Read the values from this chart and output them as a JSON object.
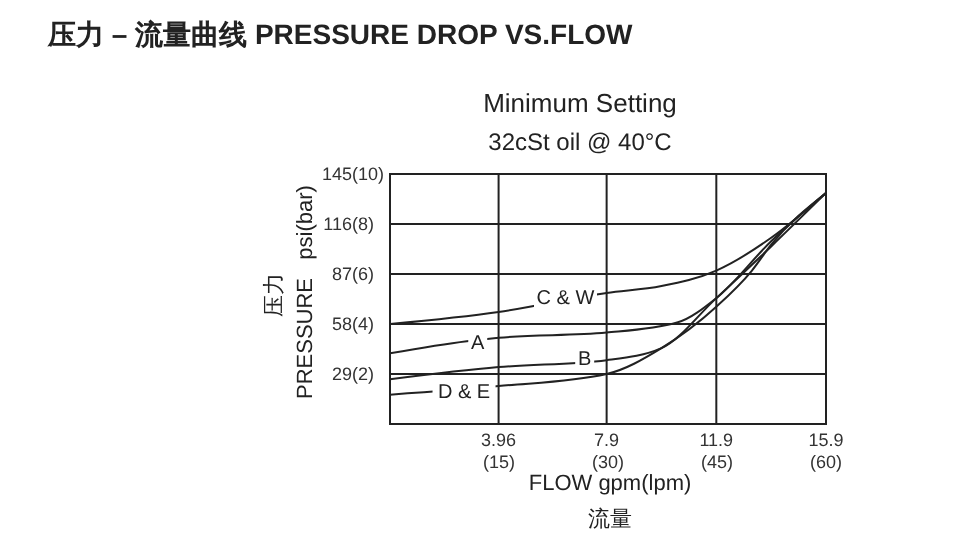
{
  "chart_data": {
    "type": "line",
    "title": "压力 – 流量曲线 PRESSURE DROP VS.FLOW",
    "subtitle": "Minimum Setting\n32cSt oil @ 40°C",
    "xlabel": "FLOW gpm(lpm)\n流量",
    "ylabel": "压力\nPRESSURE   psi(bar)",
    "xlim": [
      0,
      15.9
    ],
    "ylim": [
      0,
      145
    ],
    "xticks": [
      3.96,
      7.9,
      11.9,
      15.9
    ],
    "x2lim": [
      0,
      60
    ],
    "x2ticks": [
      {
        "value": 15,
        "label": "(15)"
      },
      {
        "value": 30,
        "label": "(30)"
      },
      {
        "value": 45,
        "label": "(45)"
      },
      {
        "value": 60,
        "label": "(60)"
      }
    ],
    "yticks": [
      29,
      58,
      87,
      116,
      145
    ],
    "y2lim": [
      0,
      10
    ],
    "y2ticks": [
      {
        "value": 2,
        "label": "(2)"
      },
      {
        "value": 4,
        "label": "(4)"
      },
      {
        "value": 6,
        "label": "(6)"
      },
      {
        "value": 8,
        "label": "(8)"
      },
      {
        "value": 10,
        "label": "(10)"
      }
    ],
    "grid": true,
    "legend": false,
    "marker": "none",
    "line_style": "solid",
    "series": [
      {
        "color": "#222222",
        "x": [
          0,
          3.96,
          7.9,
          9.9,
          11.9,
          13.9,
          15.9
        ],
        "values": [
          58,
          65,
          76,
          80,
          89,
          108,
          134
        ]
      },
      {
        "color": "#222222",
        "x": [
          0,
          2.8,
          3.96,
          7.9,
          10.5,
          11.9,
          13.9,
          15.9
        ],
        "values": [
          41,
          48,
          50,
          53,
          59,
          73,
          106,
          134
        ]
      },
      {
        "color": "#222222",
        "x": [
          0,
          3.96,
          7.9,
          9.9,
          11.9,
          13.9,
          15.9
        ],
        "values": [
          26,
          33,
          37,
          44,
          73,
          103,
          134
        ]
      },
      {
        "color": "#222222",
        "x": [
          0,
          3.96,
          7.9,
          9.9,
          11.9,
          13.2,
          13.9,
          15.9
        ],
        "values": [
          17,
          22,
          29,
          44,
          68,
          89,
          104,
          134
        ]
      }
    ],
    "annotations": [
      {
        "text": "C & W",
        "x": 6.4,
        "y": 74
      },
      {
        "text": "A",
        "x": 3.2,
        "y": 48
      },
      {
        "text": "B",
        "x": 7.1,
        "y": 39
      },
      {
        "text": "D & E",
        "x": 2.7,
        "y": 20
      }
    ]
  }
}
